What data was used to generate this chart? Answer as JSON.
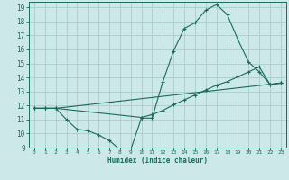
{
  "xlabel": "Humidex (Indice chaleur)",
  "bg_color": "#cce8e8",
  "grid_color": "#aacccc",
  "line_color": "#1a6b5a",
  "xlim": [
    -0.5,
    23.5
  ],
  "ylim": [
    9,
    19.4
  ],
  "xticks": [
    0,
    1,
    2,
    3,
    4,
    5,
    6,
    7,
    8,
    9,
    10,
    11,
    12,
    13,
    14,
    15,
    16,
    17,
    18,
    19,
    20,
    21,
    22,
    23
  ],
  "yticks": [
    9,
    10,
    11,
    12,
    13,
    14,
    15,
    16,
    17,
    18,
    19
  ],
  "curve1_x": [
    0,
    1,
    2,
    3,
    4,
    5,
    6,
    7,
    8,
    9,
    10,
    11,
    12,
    13,
    14,
    15,
    16,
    17,
    18,
    19,
    20,
    21,
    22,
    23
  ],
  "curve1_y": [
    11.8,
    11.8,
    11.8,
    11.0,
    10.3,
    10.2,
    9.9,
    9.5,
    8.85,
    8.85,
    11.1,
    11.1,
    13.7,
    15.9,
    17.5,
    17.9,
    18.8,
    19.2,
    18.5,
    16.7,
    15.1,
    14.4,
    13.5,
    13.6
  ],
  "curve2_x": [
    0,
    1,
    2,
    10,
    11,
    12,
    13,
    14,
    15,
    16,
    17,
    18,
    19,
    20,
    21,
    22,
    23
  ],
  "curve2_y": [
    11.8,
    11.8,
    11.8,
    11.15,
    11.35,
    11.65,
    12.05,
    12.4,
    12.75,
    13.1,
    13.45,
    13.7,
    14.05,
    14.4,
    14.75,
    13.5,
    13.6
  ],
  "curve3_x": [
    0,
    1,
    2,
    23
  ],
  "curve3_y": [
    11.8,
    11.8,
    11.8,
    13.6
  ]
}
